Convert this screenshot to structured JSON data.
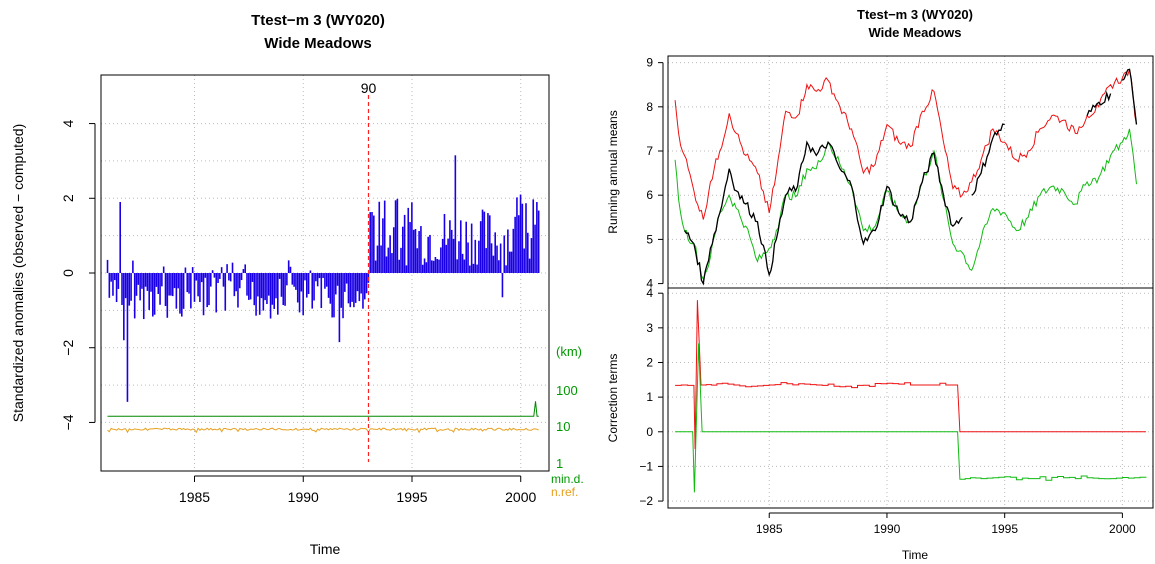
{
  "colors": {
    "anomaly_bars": "#1a00e6",
    "breakpoint_line": "#ff2020",
    "min_distance_line": "#008800",
    "nref_line": "#e8a020",
    "axis_label_green": "#009900",
    "axis_label_orange": "#e8a020",
    "series_red": "#ee1111",
    "series_green": "#11bb11",
    "series_black": "#000000",
    "grid": "#bbbbbb"
  },
  "left_panel": {
    "title_line1": "Ttest−m   3 (WY020)",
    "title_line2": "Wide Meadows",
    "xlabel": "Time",
    "ylabel": "Standardized anomalies (observed − computed)",
    "breakpoint_label": "90",
    "right_axis_unit": "(km)",
    "right_axis_ticks": [
      "100",
      "10",
      "1"
    ],
    "right_axis_label_min": "min.d.",
    "right_axis_label_nref": "n.ref."
  },
  "right_panel": {
    "title_line1": "Ttest−m   3 (WY020)",
    "title_line2": "Wide Meadows",
    "xlabel": "Time",
    "top_ylabel": "Running annual means",
    "bottom_ylabel": "Correction terms"
  },
  "chart_data": [
    {
      "type": "bar",
      "title": "Ttest−m   3 (WY020) Wide Meadows",
      "xlabel": "Time",
      "ylabel": "Standardized anomalies (observed − computed)",
      "xlim": [
        1980.7,
        2001.3
      ],
      "ylim": [
        -5.3,
        5.3
      ],
      "x_ticks": [
        1985,
        1990,
        1995,
        2000
      ],
      "y_ticks": [
        -4,
        -2,
        0,
        2,
        4
      ],
      "grid": true,
      "breakpoint": {
        "x": 1993.0,
        "label": "90"
      },
      "anomaly_series": {
        "start": 1981.0,
        "step_years": 0.0833,
        "notable_values": [
          {
            "x": 1981.0,
            "y": 0.35
          },
          {
            "x": 1981.6,
            "y": 1.9
          },
          {
            "x": 1981.75,
            "y": -1.8
          },
          {
            "x": 1981.9,
            "y": -3.45
          },
          {
            "x": 1991.7,
            "y": -1.85
          },
          {
            "x": 1997.0,
            "y": 3.15
          },
          {
            "x": 1999.2,
            "y": -0.65
          },
          {
            "x": 2000.0,
            "y": 2.1
          },
          {
            "x": 2000.75,
            "y": 1.9
          }
        ],
        "typical_range_before_break": [
          -1.3,
          0.3
        ],
        "typical_range_after_break": [
          0.2,
          1.8
        ]
      },
      "min_distance_km": {
        "level": 20,
        "end_spike": 50
      },
      "n_ref": {
        "level": 9
      }
    },
    {
      "type": "line",
      "title": "Ttest−m   3 (WY020) Wide Meadows",
      "ylabel": "Running annual means",
      "xlim": [
        1980.7,
        2001.3
      ],
      "ylim": [
        3.9,
        9.15
      ],
      "y_ticks": [
        4,
        5,
        6,
        7,
        8,
        9
      ],
      "grid": true,
      "series": [
        {
          "color": "red",
          "points": [
            [
              1981.0,
              8.15
            ],
            [
              1981.15,
              7.4
            ],
            [
              1981.4,
              6.9
            ],
            [
              1981.8,
              6.1
            ],
            [
              1982.2,
              5.45
            ],
            [
              1982.5,
              6.3
            ],
            [
              1982.9,
              7.0
            ],
            [
              1983.3,
              7.85
            ],
            [
              1983.6,
              7.4
            ],
            [
              1984.0,
              6.9
            ],
            [
              1984.5,
              6.5
            ],
            [
              1985.0,
              5.6
            ],
            [
              1985.3,
              6.5
            ],
            [
              1985.7,
              7.9
            ],
            [
              1986.2,
              7.8
            ],
            [
              1986.6,
              8.5
            ],
            [
              1987.0,
              8.35
            ],
            [
              1987.5,
              8.6
            ],
            [
              1988.0,
              8.0
            ],
            [
              1988.5,
              7.5
            ],
            [
              1989.0,
              6.5
            ],
            [
              1989.5,
              6.7
            ],
            [
              1990.0,
              7.6
            ],
            [
              1990.5,
              7.2
            ],
            [
              1991.0,
              7.1
            ],
            [
              1991.5,
              7.9
            ],
            [
              1992.0,
              8.35
            ],
            [
              1992.4,
              7.2
            ],
            [
              1992.8,
              6.15
            ],
            [
              1993.2,
              6.0
            ],
            [
              1993.6,
              6.3
            ],
            [
              1994.0,
              6.8
            ],
            [
              1994.5,
              7.5
            ],
            [
              1995.0,
              7.2
            ],
            [
              1995.5,
              6.8
            ],
            [
              1996.0,
              7.0
            ],
            [
              1996.5,
              7.5
            ],
            [
              1997.0,
              7.8
            ],
            [
              1997.5,
              7.7
            ],
            [
              1998.0,
              7.4
            ],
            [
              1998.5,
              7.8
            ],
            [
              1999.0,
              8.0
            ],
            [
              1999.5,
              8.5
            ],
            [
              2000.0,
              8.65
            ],
            [
              2000.3,
              8.85
            ],
            [
              2000.6,
              7.6
            ]
          ]
        },
        {
          "color": "green",
          "points": [
            [
              1981.0,
              6.8
            ],
            [
              1981.15,
              5.9
            ],
            [
              1981.4,
              5.2
            ],
            [
              1981.8,
              4.9
            ],
            [
              1982.2,
              4.1
            ],
            [
              1982.5,
              4.6
            ],
            [
              1982.9,
              5.6
            ],
            [
              1983.3,
              6.0
            ],
            [
              1983.6,
              5.7
            ],
            [
              1984.0,
              5.3
            ],
            [
              1984.5,
              4.5
            ],
            [
              1985.0,
              4.8
            ],
            [
              1985.3,
              5.2
            ],
            [
              1985.7,
              6.0
            ],
            [
              1986.2,
              6.0
            ],
            [
              1986.6,
              6.6
            ],
            [
              1987.0,
              6.6
            ],
            [
              1987.5,
              7.2
            ],
            [
              1988.0,
              6.7
            ],
            [
              1988.5,
              6.2
            ],
            [
              1989.0,
              5.2
            ],
            [
              1989.5,
              5.3
            ],
            [
              1990.0,
              6.1
            ],
            [
              1990.5,
              5.6
            ],
            [
              1991.0,
              5.4
            ],
            [
              1991.5,
              6.3
            ],
            [
              1992.0,
              7.0
            ],
            [
              1992.4,
              5.9
            ],
            [
              1992.8,
              4.9
            ],
            [
              1993.2,
              4.7
            ],
            [
              1993.6,
              4.3
            ],
            [
              1994.0,
              5.0
            ],
            [
              1994.5,
              5.7
            ],
            [
              1995.0,
              5.6
            ],
            [
              1995.5,
              5.2
            ],
            [
              1996.0,
              5.5
            ],
            [
              1996.5,
              6.0
            ],
            [
              1997.0,
              6.2
            ],
            [
              1997.5,
              6.1
            ],
            [
              1998.0,
              5.8
            ],
            [
              1998.5,
              6.3
            ],
            [
              1999.0,
              6.4
            ],
            [
              1999.5,
              6.9
            ],
            [
              2000.0,
              7.2
            ],
            [
              2000.3,
              7.5
            ],
            [
              2000.6,
              6.25
            ]
          ]
        },
        {
          "color": "black",
          "points": [
            [
              1981.4,
              5.2
            ],
            [
              1981.8,
              4.9
            ],
            [
              1982.2,
              4.0
            ],
            [
              1982.5,
              4.8
            ],
            [
              1982.9,
              5.6
            ],
            [
              1983.3,
              6.6
            ],
            [
              1983.6,
              6.1
            ],
            [
              1984.0,
              5.8
            ],
            [
              1984.5,
              5.4
            ],
            [
              1985.0,
              4.2
            ],
            [
              1985.3,
              5.0
            ],
            [
              1985.7,
              6.0
            ],
            [
              1986.2,
              6.2
            ],
            [
              1986.6,
              7.2
            ],
            [
              1987.0,
              6.9
            ],
            [
              1987.5,
              7.2
            ],
            [
              1988.0,
              6.6
            ],
            [
              1988.5,
              6.2
            ],
            [
              1989.0,
              4.9
            ],
            [
              1989.5,
              5.2
            ],
            [
              1990.0,
              6.2
            ],
            [
              1990.5,
              5.6
            ],
            [
              1991.0,
              5.4
            ],
            [
              1991.5,
              6.3
            ],
            [
              1992.0,
              6.95
            ],
            [
              1992.4,
              6.0
            ],
            [
              1992.8,
              5.3
            ],
            [
              1993.2,
              5.5
            ]
          ]
        },
        {
          "color": "black",
          "points": [
            [
              1993.6,
              6.0
            ],
            [
              1994.0,
              6.5
            ],
            [
              1994.5,
              7.3
            ],
            [
              1995.0,
              7.6
            ]
          ]
        },
        {
          "color": "black",
          "points": [
            [
              1998.5,
              7.8
            ],
            [
              1999.0,
              8.1
            ],
            [
              1999.5,
              8.3
            ]
          ]
        },
        {
          "color": "black",
          "points": [
            [
              2000.0,
              8.6
            ],
            [
              2000.3,
              8.85
            ],
            [
              2000.6,
              7.6
            ]
          ]
        }
      ]
    },
    {
      "type": "line",
      "ylabel": "Correction terms",
      "xlabel": "Time",
      "xlim": [
        1980.7,
        2001.3
      ],
      "ylim": [
        -2.2,
        4.15
      ],
      "x_ticks": [
        1985,
        1990,
        1995,
        2000
      ],
      "y_ticks": [
        -2,
        -1,
        0,
        1,
        2,
        3,
        4
      ],
      "grid": true,
      "series": [
        {
          "color": "red",
          "points": [
            [
              1981.0,
              1.35
            ],
            [
              1981.8,
              1.35
            ],
            [
              1981.85,
              -0.5
            ],
            [
              1981.95,
              3.8
            ],
            [
              1982.1,
              1.35
            ],
            [
              1983.0,
              1.4
            ],
            [
              1984.0,
              1.3
            ],
            [
              1985.0,
              1.35
            ],
            [
              1986.0,
              1.4
            ],
            [
              1987.0,
              1.35
            ],
            [
              1988.0,
              1.3
            ],
            [
              1989.0,
              1.35
            ],
            [
              1990.0,
              1.4
            ],
            [
              1991.0,
              1.35
            ],
            [
              1992.0,
              1.35
            ],
            [
              1993.0,
              1.35
            ],
            [
              1993.1,
              0.0
            ],
            [
              2001.0,
              0.0
            ]
          ]
        },
        {
          "color": "green",
          "points": [
            [
              1981.0,
              0.0
            ],
            [
              1981.75,
              0.0
            ],
            [
              1981.82,
              -1.75
            ],
            [
              1982.0,
              2.55
            ],
            [
              1982.15,
              0.0
            ],
            [
              1993.0,
              0.0
            ],
            [
              1993.1,
              -1.35
            ],
            [
              1994.0,
              -1.35
            ],
            [
              1995.0,
              -1.3
            ],
            [
              1996.0,
              -1.35
            ],
            [
              1997.0,
              -1.35
            ],
            [
              1998.0,
              -1.3
            ],
            [
              1999.0,
              -1.35
            ],
            [
              2000.0,
              -1.35
            ],
            [
              2001.0,
              -1.3
            ]
          ]
        }
      ]
    }
  ]
}
